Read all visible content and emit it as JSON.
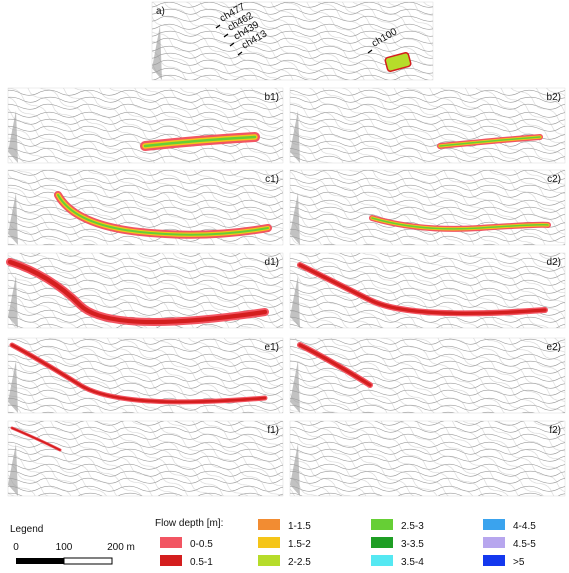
{
  "panel_a": {
    "label": "a)",
    "cross_sections": [
      "ch477",
      "ch462",
      "ch439",
      "ch413",
      "ch100"
    ]
  },
  "panels": [
    "b1)",
    "b2)",
    "c1)",
    "c2)",
    "d1)",
    "d2)",
    "e1)",
    "e2)",
    "f1)",
    "f2)"
  ],
  "legend": {
    "title": "Legend",
    "scale_labels": [
      "0",
      "100",
      "200 m"
    ],
    "flow_depth_title": "Flow depth [m]:",
    "items": [
      {
        "label": "0-0.5",
        "color": "#f25562"
      },
      {
        "label": "0.5-1",
        "color": "#d41e1e"
      },
      {
        "label": "1-1.5",
        "color": "#f28c32"
      },
      {
        "label": "1.5-2",
        "color": "#f5c518"
      },
      {
        "label": "2-2.5",
        "color": "#b6dc2a"
      },
      {
        "label": "2.5-3",
        "color": "#66cf35"
      },
      {
        "label": "3-3.5",
        "color": "#1e9e24"
      },
      {
        "label": "3.5-4",
        "color": "#55e8f2"
      },
      {
        "label": "4-4.5",
        "color": "#3aa3ee"
      },
      {
        "label": "4.5-5",
        "color": "#b7a6ee"
      },
      {
        "label": ">5",
        "color": "#1438ee"
      }
    ]
  }
}
